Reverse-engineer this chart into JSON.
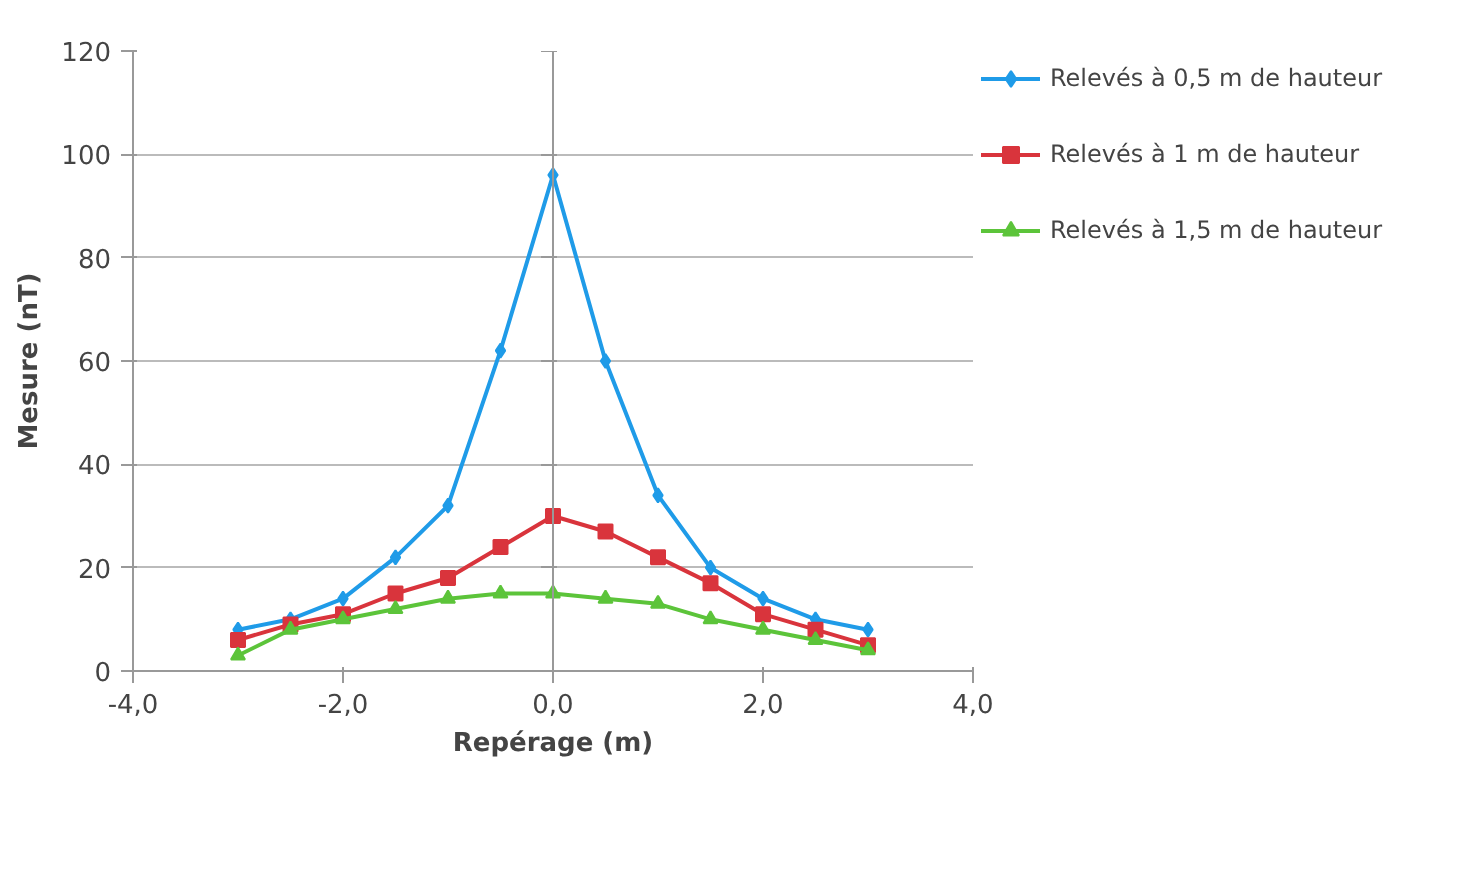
{
  "chart_data": {
    "type": "line",
    "xlabel": "Repérage (m)",
    "ylabel": "Mesure (nT)",
    "x": [
      -3,
      -2.5,
      -2,
      -1.5,
      -1,
      -0.5,
      0,
      0.5,
      1,
      1.5,
      2,
      2.5,
      3
    ],
    "series": [
      {
        "name": "Relevés à 0,5 m de hauteur",
        "color": "#1f9be8",
        "marker": "diamond",
        "values": [
          8,
          10,
          14,
          22,
          32,
          62,
          96,
          60,
          34,
          20,
          14,
          10,
          8
        ]
      },
      {
        "name": "Relevés à 1 m de hauteur",
        "color": "#d9343c",
        "marker": "square",
        "values": [
          6,
          9,
          11,
          15,
          18,
          24,
          30,
          27,
          22,
          17,
          11,
          8,
          5
        ]
      },
      {
        "name": "Relevés à 1,5 m de hauteur",
        "color": "#5cc43a",
        "marker": "triangle",
        "values": [
          3,
          8,
          10,
          12,
          14,
          15,
          15,
          14,
          13,
          10,
          8,
          6,
          4
        ]
      }
    ],
    "xlim": [
      -4,
      4
    ],
    "ylim": [
      0,
      120
    ],
    "xticks": [
      {
        "value": -4,
        "label": "-4,0"
      },
      {
        "value": -2,
        "label": "-2,0"
      },
      {
        "value": 0,
        "label": "0,0"
      },
      {
        "value": 2,
        "label": "2,0"
      },
      {
        "value": 4,
        "label": "4,0"
      }
    ],
    "yticks": [
      0,
      20,
      40,
      60,
      80,
      100,
      120
    ],
    "grid": "y",
    "legend": "right",
    "line_style": "solid"
  }
}
